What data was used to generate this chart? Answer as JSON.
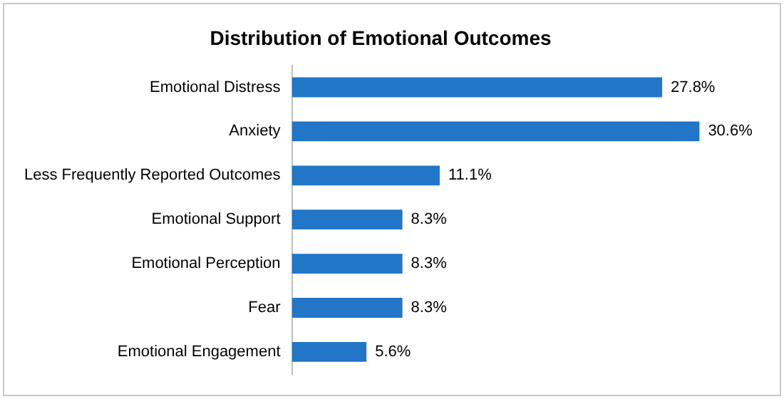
{
  "chart_data": {
    "type": "bar",
    "orientation": "horizontal",
    "title": "Distribution of Emotional Outcomes",
    "categories": [
      "Emotional Distress",
      "Anxiety",
      "Less Frequently Reported Outcomes",
      "Emotional Support",
      "Emotional Perception",
      "Fear",
      "Emotional Engagement"
    ],
    "values": [
      27.8,
      30.6,
      11.1,
      8.3,
      8.3,
      8.3,
      5.6
    ],
    "value_labels": [
      "27.8%",
      "30.6%",
      "11.1%",
      "8.3%",
      "8.3%",
      "8.3%",
      "5.6%"
    ],
    "color": "#2176c7",
    "grid": false,
    "legend": false,
    "tick_labels": "y"
  }
}
